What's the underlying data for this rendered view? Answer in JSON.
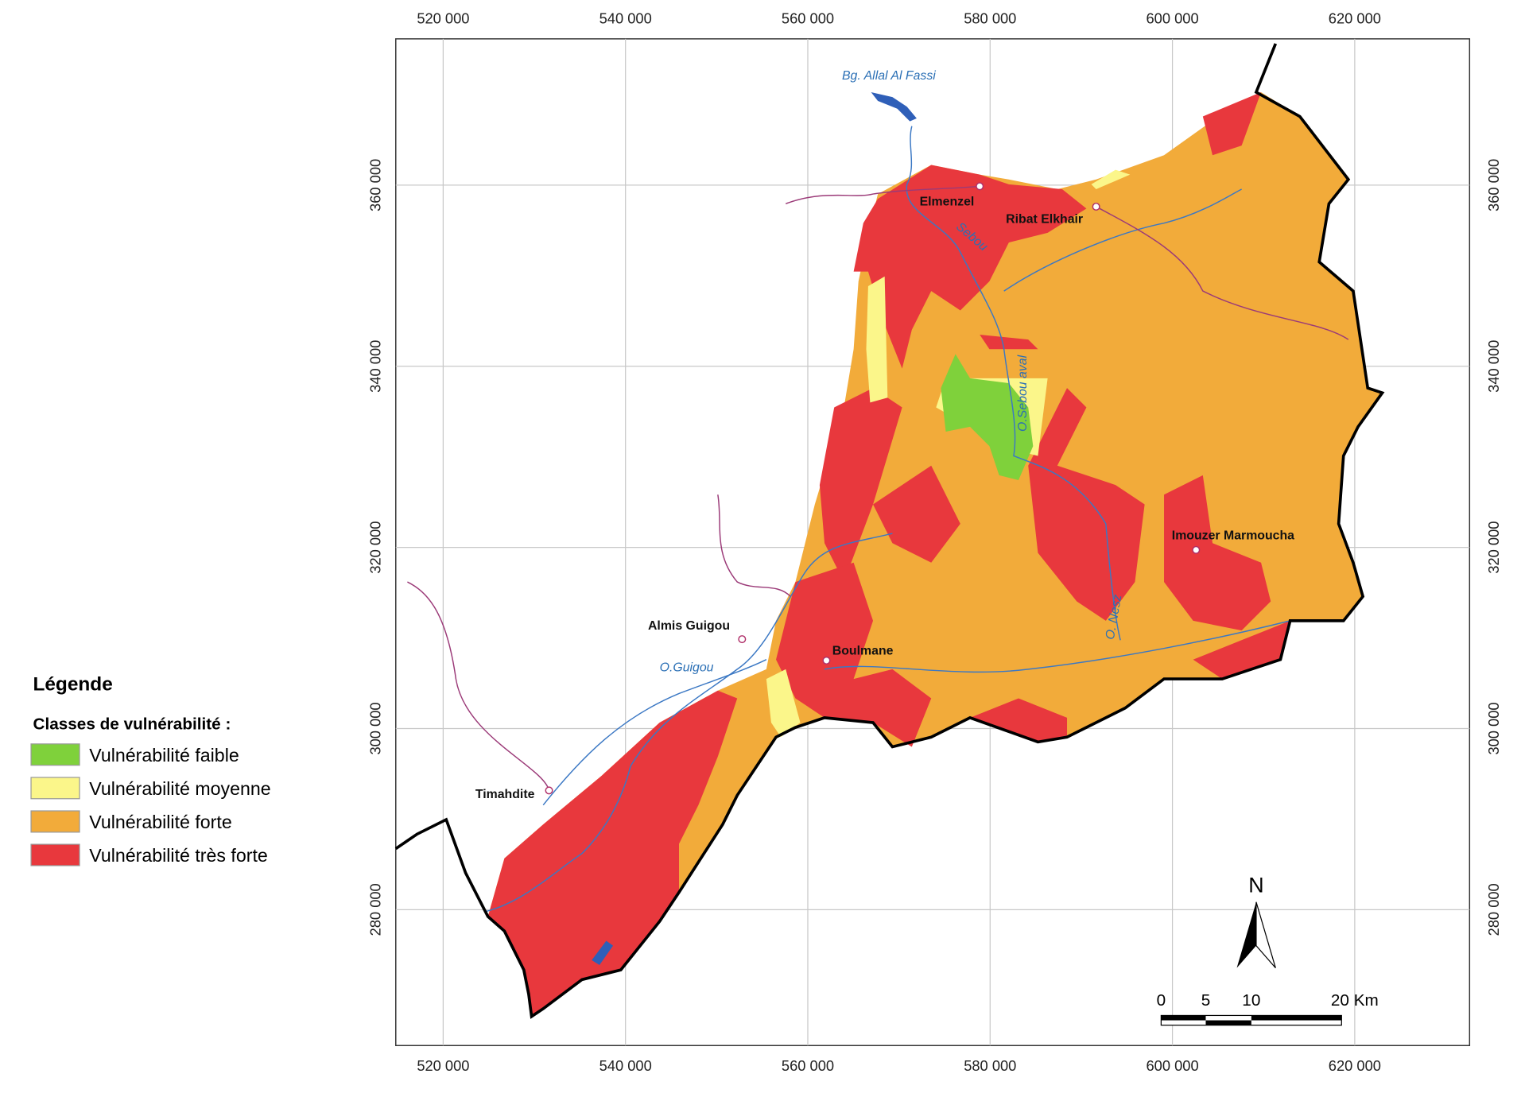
{
  "legend": {
    "title": "Légende",
    "subtitle": "Classes de vulnérabilité :",
    "items": [
      {
        "label": "Vulnérabilité faible",
        "color": "#7fd13b"
      },
      {
        "label": "Vulnérabilité moyenne",
        "color": "#fbf68a"
      },
      {
        "label": "Vulnérabilité forte",
        "color": "#f2ab3a"
      },
      {
        "label": "Vulnérabilité très forte",
        "color": "#e8383d"
      }
    ]
  },
  "grid": {
    "xlim": [
      514800,
      632600
    ],
    "ylim": [
      265000,
      376150
    ],
    "xticks": [
      {
        "value": 520000,
        "label": "520 000"
      },
      {
        "value": 540000,
        "label": "540 000"
      },
      {
        "value": 560000,
        "label": "560 000"
      },
      {
        "value": 580000,
        "label": "580 000"
      },
      {
        "value": 600000,
        "label": "600 000"
      },
      {
        "value": 620000,
        "label": "620 000"
      }
    ],
    "yticks": [
      {
        "value": 280000,
        "label": "280 000"
      },
      {
        "value": 300000,
        "label": "300 000"
      },
      {
        "value": 320000,
        "label": "320 000"
      },
      {
        "value": 340000,
        "label": "340 000"
      },
      {
        "value": 360000,
        "label": "360 000"
      }
    ]
  },
  "places": [
    "Elmenzel",
    "Ribat Elkhair",
    "Imouzer Marmoucha",
    "Almis Guigou",
    "Boulmane",
    "Timahdite"
  ],
  "water": [
    "Bg. Allal Al Fassi",
    "O.Guigou",
    "O.Sebou aval",
    "Sebou",
    "O. Nesz"
  ],
  "north": "N",
  "scale": [
    "0",
    "5",
    "10",
    "20 Km"
  ]
}
